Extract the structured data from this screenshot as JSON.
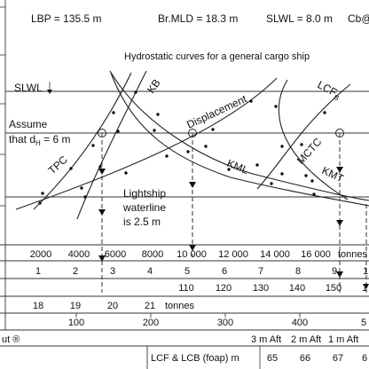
{
  "header": {
    "lbp": "LBP = 135.5 m",
    "br_mld": "Br.MLD = 18.3 m",
    "slwl": "SLWL = 8.0 m",
    "cb": "Cb@"
  },
  "title": "Hydrostatic curves for a general cargo ship",
  "curve_labels": {
    "slwl": "SLWL",
    "kb": "KB",
    "lcf": "LCF",
    "lcf_sub": "B",
    "displacement": "Displacement",
    "tpc": "TPC",
    "kml": "KML",
    "mctc": "MCTC",
    "kmt": "KMT"
  },
  "notes": {
    "assume_1": "Assume",
    "assume_2": "that d",
    "assume_sub": "H",
    "assume_3": " = 6 m",
    "lightship_1": "Lightship",
    "lightship_2": "waterline",
    "lightship_3": "is 2.5 m"
  },
  "scales": {
    "displacement": {
      "ticks": [
        "2000",
        "4000",
        "6000",
        "8000",
        "10 000",
        "12 000",
        "14 000",
        "16 000"
      ],
      "unit": "tonnes"
    },
    "kb_km": {
      "ticks": [
        "1",
        "2",
        "3",
        "4",
        "5",
        "6",
        "7",
        "8",
        "9",
        "1"
      ]
    },
    "mctc": {
      "ticks": [
        "110",
        "120",
        "130",
        "140",
        "150",
        "1"
      ]
    },
    "tpc": {
      "ticks": [
        "18",
        "19",
        "20",
        "21"
      ],
      "unit": "tonnes"
    },
    "row5": {
      "ticks": [
        "100",
        "200",
        "300",
        "400",
        "5"
      ]
    },
    "row6": {
      "left_label": "ut ®",
      "aft_labels": [
        "3 m Aft",
        "2 m Aft",
        "1 m Aft"
      ]
    },
    "lcf_lcb": {
      "label": "LCF & LCB (foap) m",
      "ticks": [
        "65",
        "66",
        "67",
        "6"
      ]
    }
  }
}
